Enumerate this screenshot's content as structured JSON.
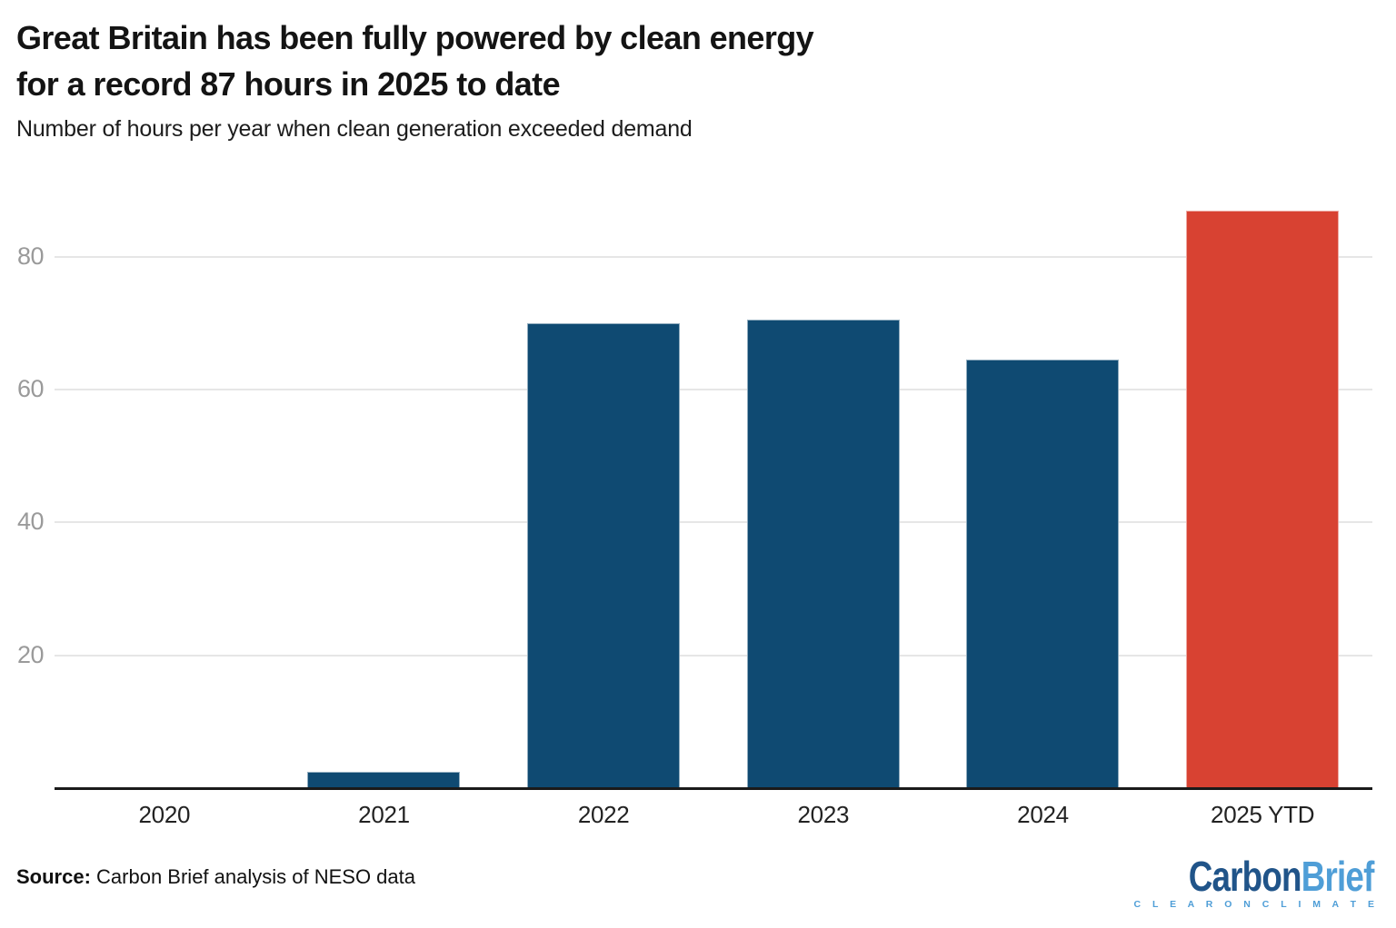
{
  "header": {
    "title_line1": "Great Britain has been fully powered by clean energy",
    "title_line2": "for a record 87 hours in 2025 to date",
    "subtitle": "Number of hours per year when clean generation exceeded demand"
  },
  "chart_data": {
    "type": "bar",
    "title": "Great Britain has been fully powered by clean energy for a record 87 hours in 2025 to date",
    "subtitle": "Number of hours per year when clean generation exceeded demand",
    "categories": [
      "2020",
      "2021",
      "2022",
      "2023",
      "2024",
      "2025 YTD"
    ],
    "values": [
      0,
      2.5,
      70,
      70.5,
      64.5,
      87
    ],
    "xlabel": "",
    "ylabel": "Hours per year when clean generation exceeded demand",
    "ylim": [
      0,
      91.5
    ],
    "yticks": [
      20,
      40,
      60,
      80
    ],
    "grid": true,
    "legend": "none",
    "bar_color_default": "#0f4a72",
    "bar_color_highlight": "#d84232",
    "bar_colors": [
      "#0f4a72",
      "#0f4a72",
      "#0f4a72",
      "#0f4a72",
      "#0f4a72",
      "#d84232"
    ],
    "gridline_color": "#e6e6e6",
    "axis_line_color": "#1a1a1a",
    "ytick_color": "#9a9a9a",
    "xtick_color": "#222222"
  },
  "footer": {
    "source_label": "Source:",
    "source_text": " Carbon Brief analysis of NESO data",
    "logo": {
      "part1": "Carbon",
      "part2": "Brief",
      "tagline": "C L E A R   O N   C L I M A T E",
      "tagline_plain": "CLEAR ON CLIMATE",
      "color_dark": "#205489",
      "color_light": "#4f9ed7"
    }
  }
}
